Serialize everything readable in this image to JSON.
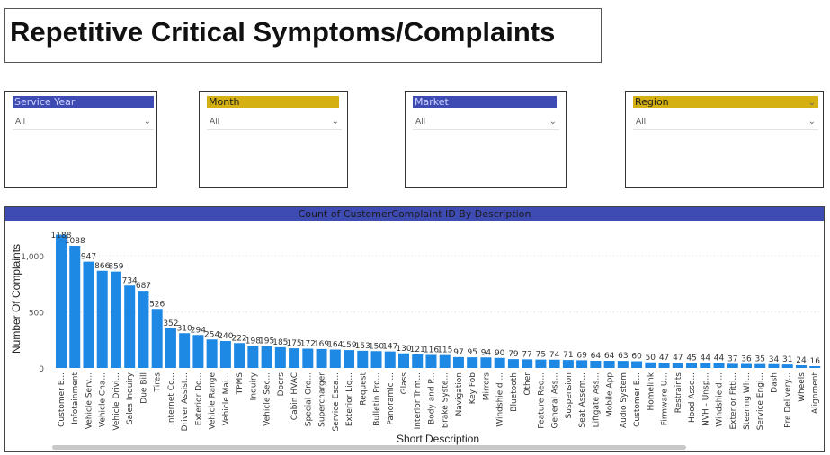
{
  "page": {
    "title": "Repetitive Critical Symptoms/Complaints"
  },
  "filters": [
    {
      "label": "Service Year",
      "value": "All",
      "header_color": "#3e4bb3"
    },
    {
      "label": "Month",
      "value": "All",
      "header_color": "#d4b012"
    },
    {
      "label": "Market",
      "value": "All",
      "header_color": "#3e4bb3"
    },
    {
      "label": "Region",
      "value": "All",
      "header_color": "#d4b012"
    }
  ],
  "colors": {
    "bar": "#1e88e5",
    "title_bar": "#3e4bb3",
    "slicer_gold": "#d4b012"
  },
  "chart_data": {
    "type": "bar",
    "title": "Count of CustomerComplaint ID By Description",
    "xlabel": "Short Description",
    "ylabel": "Number Of Complaints",
    "ylim": [
      0,
      1200
    ],
    "yticks": [
      0,
      500,
      1000
    ],
    "ytick_labels": [
      "0",
      "500",
      "1,000"
    ],
    "grid": true,
    "categories": [
      "Customer E...",
      "Infotainment",
      "Vehicle Serv...",
      "Vehicle Cha...",
      "Vehicle Drivi...",
      "Sales Inquiry",
      "Due Bill",
      "Tires",
      "Internet Co...",
      "Driver Assist...",
      "Exterior Do...",
      "Vehicle Range",
      "Vehicle Mai...",
      "TPMS",
      "Inquiry",
      "Vehicle Sec...",
      "Doors",
      "Cabin HVAC",
      "Special Ord...",
      "Supercharger",
      "Service Esca...",
      "Exterior Lig...",
      "Request",
      "Bulletin Pro...",
      "Panoramic ...",
      "Glass",
      "Interior Trim...",
      "Body and P...",
      "Brake Syste...",
      "Navigation",
      "Key Fob",
      "Mirrors",
      "Windshield ...",
      "Bluetooth",
      "Other",
      "Feature Req...",
      "General Ass...",
      "Suspension",
      "Seat Assem...",
      "Liftgate Ass...",
      "Mobile App",
      "Audio System",
      "Customer E...",
      "Homelink",
      "Firmware U...",
      "Restraints",
      "Hood Asse...",
      "NVH - Unsp...",
      "Windshield ...",
      "Exterior Fitti...",
      "Steering Wh...",
      "Service Engi...",
      "Dash",
      "Pre Delivery...",
      "Wheels",
      "Alignment"
    ],
    "values": [
      1188,
      1088,
      947,
      866,
      859,
      734,
      687,
      526,
      352,
      310,
      294,
      254,
      240,
      222,
      198,
      195,
      185,
      175,
      172,
      169,
      164,
      159,
      153,
      150,
      147,
      130,
      121,
      116,
      115,
      97,
      95,
      94,
      90,
      79,
      77,
      75,
      74,
      71,
      69,
      64,
      64,
      63,
      60,
      50,
      47,
      47,
      45,
      44,
      44,
      37,
      36,
      35,
      34,
      31,
      24,
      16
    ]
  }
}
